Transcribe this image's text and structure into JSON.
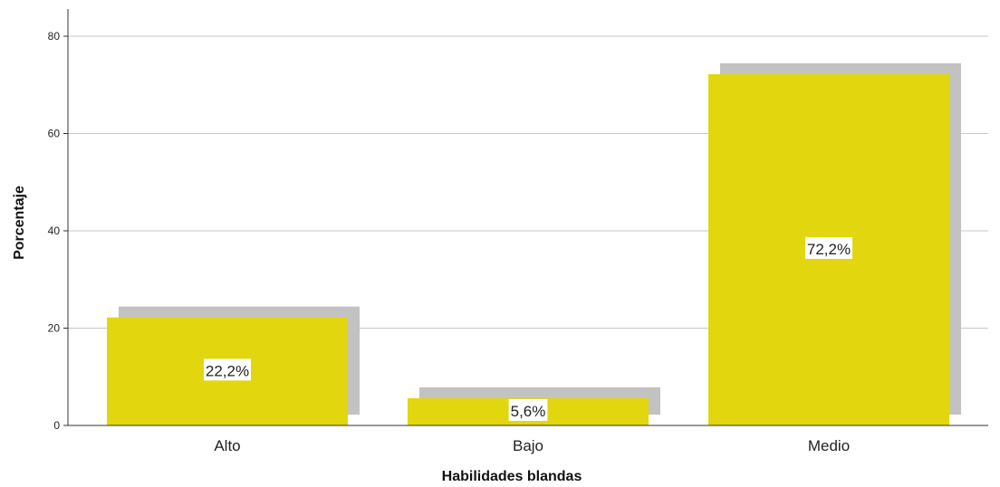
{
  "chart_data": {
    "type": "bar",
    "categories": [
      "Alto",
      "Bajo",
      "Medio"
    ],
    "values": [
      22.2,
      5.6,
      72.2
    ],
    "data_labels": [
      "22,2%",
      "5,6%",
      "72,2%"
    ],
    "xlabel": "Habilidades blandas",
    "ylabel": "Porcentaje",
    "ylim": [
      0,
      80
    ],
    "yticks": [
      0,
      20,
      40,
      60,
      80
    ],
    "grid": true,
    "bar_color": "#e2d60f",
    "shadow_color": "#c2c2c2",
    "gridline_color": "#c8c8c8"
  }
}
